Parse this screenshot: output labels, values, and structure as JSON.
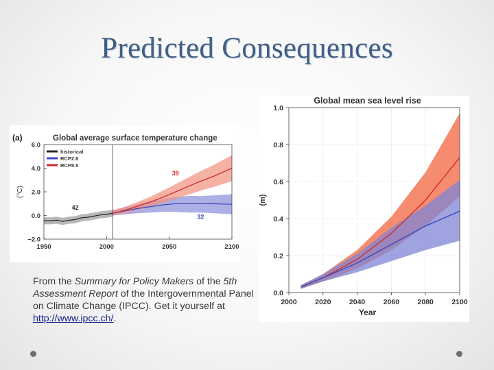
{
  "slide": {
    "title": "Predicted Consequences"
  },
  "caption": {
    "part1": "From the ",
    "italic1": "Summary for Policy Makers",
    "part2": " of the ",
    "italic2": "5th Assessment Report",
    "part3": " of the Intergovernmental Panel on Climate Change (IPCC). Get it yourself at ",
    "link_text": "http://www.ipcc.ch/",
    "part4": "."
  },
  "chart_data": [
    {
      "type": "line",
      "panel_label": "(a)",
      "title": "Global average surface temperature change",
      "ylabel": "(°C)",
      "xlabel": "",
      "xlim": [
        1950,
        2100
      ],
      "ylim": [
        -2.0,
        6.0
      ],
      "xticks": [
        "1950",
        "2000",
        "2050",
        "2100"
      ],
      "yticks": [
        "−2.0",
        "0.0",
        "2.0",
        "4.0",
        "6.0"
      ],
      "ytick_values": [
        -2.0,
        0.0,
        2.0,
        4.0,
        6.0
      ],
      "xtick_values": [
        1950,
        2000,
        2050,
        2100
      ],
      "vertical_marker": 2005,
      "legend": {
        "position": "top-left",
        "entries": [
          "historical",
          "RCP2.6",
          "RCP8.5"
        ]
      },
      "colors": {
        "historical": "#2a2a2a",
        "RCP2.6": "#3a48c0",
        "RCP8.5": "#d22a2a",
        "historical_band": "#9a9a9a",
        "RCP2.6_band": "#8a8fd8",
        "RCP8.5_band": "#f2907f"
      },
      "annotations": [
        {
          "text": "39",
          "x": 2055,
          "y": 3.4,
          "color": "#d22a2a"
        },
        {
          "text": "42",
          "x": 1975,
          "y": 0.5,
          "color": "#2a2a2a"
        },
        {
          "text": "32",
          "x": 2075,
          "y": -0.3,
          "color": "#3a48c0"
        }
      ],
      "series": [
        {
          "name": "historical",
          "x": [
            1950,
            1955,
            1960,
            1965,
            1970,
            1975,
            1980,
            1985,
            1990,
            1995,
            2000,
            2005
          ],
          "y": [
            -0.45,
            -0.45,
            -0.4,
            -0.5,
            -0.4,
            -0.35,
            -0.2,
            -0.15,
            -0.05,
            0.05,
            0.1,
            0.2
          ],
          "lower": [
            -0.75,
            -0.75,
            -0.7,
            -0.8,
            -0.7,
            -0.65,
            -0.5,
            -0.45,
            -0.35,
            -0.25,
            -0.2,
            -0.1
          ],
          "upper": [
            -0.15,
            -0.15,
            -0.1,
            -0.2,
            -0.1,
            -0.05,
            0.1,
            0.15,
            0.25,
            0.35,
            0.4,
            0.5
          ]
        },
        {
          "name": "RCP2.6",
          "x": [
            2005,
            2015,
            2025,
            2035,
            2045,
            2055,
            2065,
            2075,
            2085,
            2100
          ],
          "y": [
            0.2,
            0.4,
            0.6,
            0.75,
            0.9,
            1.0,
            1.0,
            1.0,
            1.0,
            0.95
          ],
          "lower": [
            0.0,
            0.1,
            0.2,
            0.25,
            0.3,
            0.3,
            0.25,
            0.25,
            0.2,
            0.1
          ],
          "upper": [
            0.45,
            0.7,
            0.95,
            1.2,
            1.4,
            1.55,
            1.65,
            1.65,
            1.7,
            1.8
          ]
        },
        {
          "name": "RCP8.5",
          "x": [
            2005,
            2015,
            2025,
            2035,
            2045,
            2055,
            2065,
            2075,
            2085,
            2100
          ],
          "y": [
            0.2,
            0.45,
            0.8,
            1.15,
            1.55,
            2.0,
            2.45,
            2.9,
            3.3,
            4.0
          ],
          "lower": [
            0.0,
            0.2,
            0.45,
            0.75,
            1.05,
            1.4,
            1.75,
            2.1,
            2.4,
            2.9
          ],
          "upper": [
            0.45,
            0.75,
            1.15,
            1.6,
            2.1,
            2.65,
            3.2,
            3.75,
            4.25,
            5.1
          ]
        }
      ]
    },
    {
      "type": "line",
      "title": "Global mean sea level rise",
      "ylabel": "(m)",
      "xlabel": "Year",
      "xlim": [
        2000,
        2100
      ],
      "ylim": [
        0.0,
        1.0
      ],
      "xticks": [
        "2000",
        "2020",
        "2040",
        "2060",
        "2080",
        "2100"
      ],
      "xtick_values": [
        2000,
        2020,
        2040,
        2060,
        2080,
        2100
      ],
      "yticks": [
        "0.0",
        "0.2",
        "0.4",
        "0.6",
        "0.8",
        "1.0"
      ],
      "ytick_values": [
        0.0,
        0.2,
        0.4,
        0.6,
        0.8,
        1.0
      ],
      "colors": {
        "RCP2.6": "#3a48c0",
        "RCP8.5": "#d22a2a",
        "RCP2.6_band": "#7f84d4",
        "RCP8.5_band": "#f4805f"
      },
      "series": [
        {
          "name": "RCP2.6",
          "x": [
            2007,
            2020,
            2040,
            2060,
            2080,
            2100
          ],
          "y": [
            0.03,
            0.08,
            0.16,
            0.26,
            0.36,
            0.44
          ],
          "lower": [
            0.02,
            0.06,
            0.11,
            0.17,
            0.23,
            0.28
          ],
          "upper": [
            0.04,
            0.1,
            0.21,
            0.35,
            0.47,
            0.61
          ]
        },
        {
          "name": "RCP8.5",
          "x": [
            2007,
            2020,
            2040,
            2060,
            2080,
            2100
          ],
          "y": [
            0.03,
            0.08,
            0.18,
            0.32,
            0.5,
            0.73
          ],
          "lower": [
            0.02,
            0.06,
            0.13,
            0.23,
            0.36,
            0.52
          ],
          "upper": [
            0.04,
            0.1,
            0.23,
            0.41,
            0.65,
            0.97
          ]
        }
      ]
    }
  ]
}
